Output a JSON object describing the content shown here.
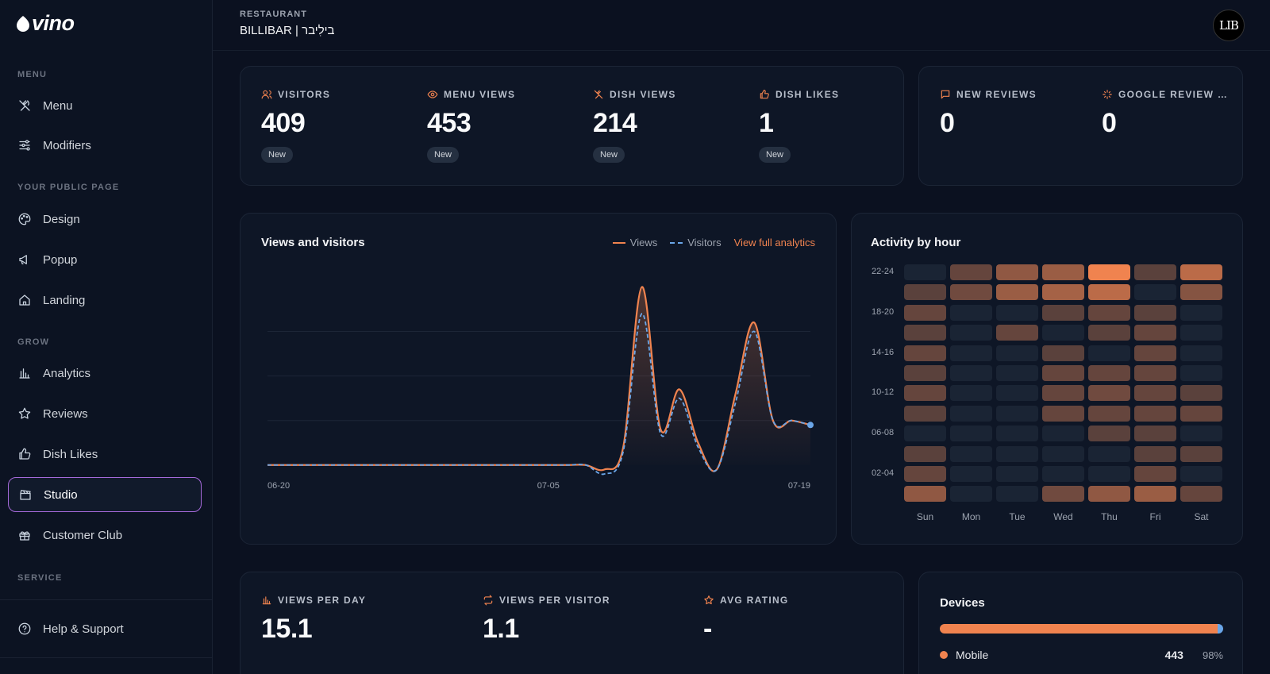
{
  "brand": {
    "logo_text": "vino"
  },
  "sidebar": {
    "sections": [
      {
        "title": "MENU"
      },
      {
        "title": "YOUR PUBLIC PAGE"
      },
      {
        "title": "GROW"
      },
      {
        "title": "SERVICE"
      }
    ],
    "items": [
      {
        "label": "Menu",
        "icon": "utensils-icon"
      },
      {
        "label": "Modifiers",
        "icon": "sliders-icon"
      },
      {
        "label": "Design",
        "icon": "palette-icon"
      },
      {
        "label": "Popup",
        "icon": "megaphone-icon"
      },
      {
        "label": "Landing",
        "icon": "home-icon"
      },
      {
        "label": "Analytics",
        "icon": "bar-chart-icon"
      },
      {
        "label": "Reviews",
        "icon": "star-icon"
      },
      {
        "label": "Dish Likes",
        "icon": "thumbs-up-icon"
      },
      {
        "label": "Studio",
        "icon": "clapperboard-icon",
        "active": true
      },
      {
        "label": "Customer Club",
        "icon": "gift-icon"
      }
    ],
    "footer_item": {
      "label": "Help & Support",
      "icon": "help-circle-icon"
    }
  },
  "header": {
    "eyebrow": "RESTAURANT",
    "title": "BILLIBAR | בילִיבר",
    "avatar_text": "LIB"
  },
  "stats_top": [
    {
      "label": "VISITORS",
      "value": "409",
      "badge": "New",
      "icon": "users-icon"
    },
    {
      "label": "MENU VIEWS",
      "value": "453",
      "badge": "New",
      "icon": "eye-icon"
    },
    {
      "label": "DISH VIEWS",
      "value": "214",
      "badge": "New",
      "icon": "utensils-icon"
    },
    {
      "label": "DISH LIKES",
      "value": "1",
      "badge": "New",
      "icon": "thumbs-up-icon"
    }
  ],
  "stats_reviews": [
    {
      "label": "NEW REVIEWS",
      "value": "0",
      "icon": "message-icon"
    },
    {
      "label": "GOOGLE REVIEW …",
      "value": "0",
      "icon": "sparkle-icon"
    }
  ],
  "views_chart": {
    "title": "Views and visitors",
    "legend_views": "Views",
    "legend_visitors": "Visitors",
    "link": "View full analytics",
    "colors": {
      "views": "#f0834f",
      "visitors": "#6aa6e8"
    }
  },
  "chart_data": [
    {
      "type": "line",
      "title": "Views and visitors",
      "x_ticks": [
        "06-20",
        "07-05",
        "07-19"
      ],
      "x": [
        "06-20",
        "06-21",
        "06-22",
        "06-23",
        "06-24",
        "06-25",
        "06-26",
        "06-27",
        "06-28",
        "06-29",
        "06-30",
        "07-01",
        "07-02",
        "07-03",
        "07-04",
        "07-05",
        "07-06",
        "07-07",
        "07-08",
        "07-09",
        "07-10",
        "07-11",
        "07-12",
        "07-13",
        "07-14",
        "07-15",
        "07-16",
        "07-17",
        "07-18",
        "07-19"
      ],
      "series": [
        {
          "name": "Views",
          "values": [
            0,
            0,
            0,
            0,
            0,
            0,
            0,
            0,
            0,
            0,
            0,
            0,
            0,
            0,
            0,
            0,
            0,
            0,
            -1,
            4,
            40,
            8,
            17,
            5,
            -1,
            16,
            32,
            10,
            10,
            9
          ]
        },
        {
          "name": "Visitors",
          "values": [
            0,
            0,
            0,
            0,
            0,
            0,
            0,
            0,
            0,
            0,
            0,
            0,
            0,
            0,
            0,
            0,
            0,
            0,
            -2,
            3,
            34,
            7,
            15,
            4,
            -1,
            14,
            30,
            10,
            10,
            9
          ]
        }
      ],
      "ylim": [
        -2,
        44
      ],
      "grid": true
    },
    {
      "type": "heatmap",
      "title": "Activity by hour",
      "x_categories": [
        "Sun",
        "Mon",
        "Tue",
        "Wed",
        "Thu",
        "Fri",
        "Sat"
      ],
      "y_tick_labels": [
        "22-24",
        "18-20",
        "14-16",
        "10-12",
        "06-08",
        "02-04"
      ],
      "rows_top_to_bottom": [
        [
          0.05,
          0.35,
          0.55,
          0.6,
          1.0,
          0.3,
          0.75
        ],
        [
          0.3,
          0.4,
          0.6,
          0.65,
          0.75,
          0.08,
          0.5
        ],
        [
          0.35,
          0.08,
          0.08,
          0.3,
          0.35,
          0.3,
          0.08
        ],
        [
          0.3,
          0.08,
          0.35,
          0.08,
          0.3,
          0.35,
          0.08
        ],
        [
          0.35,
          0.08,
          0.08,
          0.3,
          0.08,
          0.35,
          0.08
        ],
        [
          0.3,
          0.08,
          0.08,
          0.35,
          0.35,
          0.35,
          0.08
        ],
        [
          0.35,
          0.08,
          0.08,
          0.35,
          0.4,
          0.35,
          0.3
        ],
        [
          0.3,
          0.08,
          0.08,
          0.35,
          0.35,
          0.35,
          0.35
        ],
        [
          0.08,
          0.08,
          0.08,
          0.08,
          0.3,
          0.3,
          0.08
        ],
        [
          0.3,
          0.08,
          0.08,
          0.08,
          0.08,
          0.3,
          0.3
        ],
        [
          0.35,
          0.08,
          0.08,
          0.08,
          0.08,
          0.35,
          0.08
        ],
        [
          0.55,
          0.08,
          0.08,
          0.4,
          0.55,
          0.6,
          0.35
        ]
      ]
    }
  ],
  "heatmap": {
    "title": "Activity by hour"
  },
  "stats_bottom": [
    {
      "label": "VIEWS PER DAY",
      "value": "15.1",
      "icon": "bar-chart-icon"
    },
    {
      "label": "VIEWS PER VISITOR",
      "value": "1.1",
      "icon": "repeat-icon"
    },
    {
      "label": "AVG RATING",
      "value": "-",
      "icon": "star-icon"
    }
  ],
  "devices": {
    "title": "Devices",
    "mobile_share": 0.98,
    "rows": [
      {
        "label": "Mobile",
        "count": "443",
        "percent": "98%",
        "color": "#f0834f"
      }
    ],
    "other_color": "#6aa6e8"
  },
  "colors": {
    "accent": "#f0834f",
    "active_border": "#a569d9"
  }
}
